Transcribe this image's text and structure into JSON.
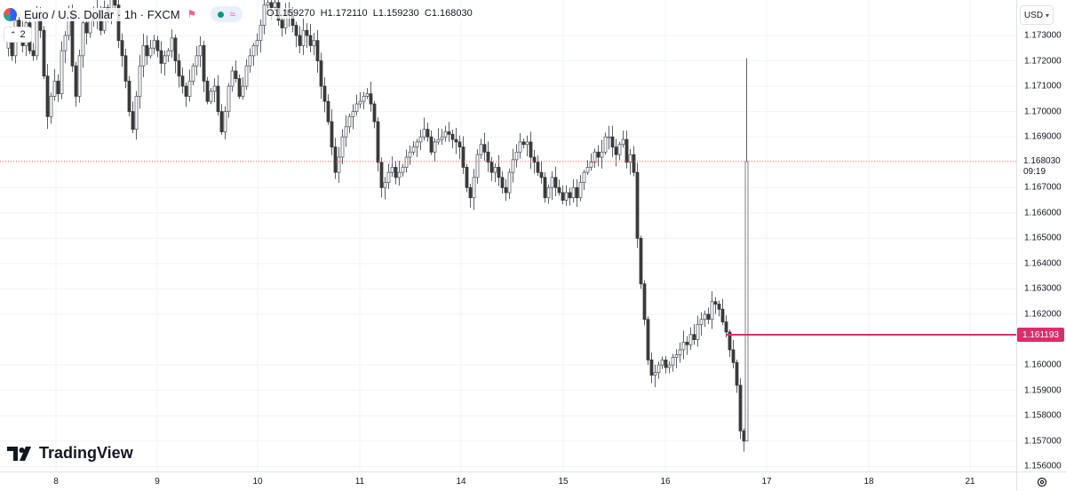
{
  "legend": {
    "title": "Euro / U.S. Dollar · 1h · FXCM",
    "open_label": "O",
    "open": "1.159270",
    "high_label": "H",
    "high": "1.172110",
    "low_label": "L",
    "low": "1.159230",
    "close_label": "C",
    "close": "1.168030",
    "collapse_count": "2"
  },
  "price_axis": {
    "currency": "USD",
    "ticks": [
      "1.173000",
      "1.172000",
      "1.171000",
      "1.170000",
      "1.169000",
      "1.168030",
      "1.167000",
      "1.166000",
      "1.165000",
      "1.164000",
      "1.163000",
      "1.162000",
      "1.161193",
      "1.160000",
      "1.159000",
      "1.158000",
      "1.157000",
      "1.156000"
    ],
    "last_price": "1.168030",
    "countdown": "09:19",
    "current_price": "1.161193"
  },
  "time_axis": {
    "labels": [
      "8",
      "9",
      "10",
      "11",
      "14",
      "15",
      "16",
      "17",
      "18",
      "21"
    ]
  },
  "branding": {
    "logo_text": "TradingView"
  },
  "colors": {
    "up": "#ffffff",
    "down": "#3a3a3a",
    "wick": "#5d606b",
    "accent_line": "#d8306d",
    "last_price_line": "#ef5350"
  },
  "chart_data": {
    "type": "candlestick",
    "symbol": "Euro / U.S. Dollar",
    "interval": "1h",
    "source": "FXCM",
    "ylim": [
      1.1558,
      1.1744
    ],
    "x_labels": [
      "8",
      "9",
      "10",
      "11",
      "14",
      "15",
      "16",
      "17",
      "18",
      "21"
    ],
    "grid": true,
    "last_price": 1.16803,
    "horizontal_line": 1.161193,
    "series": [
      {
        "name": "EURUSD",
        "anchors": [
          [
            0,
            1.1725
          ],
          [
            4,
            1.1728
          ],
          [
            8,
            1.1722
          ],
          [
            12,
            1.1736
          ],
          [
            16,
            1.1733
          ],
          [
            20,
            1.1726
          ],
          [
            24,
            1.1735
          ],
          [
            28,
            1.1724
          ],
          [
            32,
            1.1722
          ],
          [
            36,
            1.1738
          ],
          [
            40,
            1.1732
          ],
          [
            44,
            1.1714
          ],
          [
            48,
            1.1698
          ],
          [
            52,
            1.1706
          ],
          [
            56,
            1.1712
          ],
          [
            60,
            1.1707
          ],
          [
            64,
            1.1724
          ],
          [
            68,
            1.173
          ],
          [
            72,
            1.1739
          ],
          [
            76,
            1.1718
          ],
          [
            80,
            1.1706
          ],
          [
            84,
            1.1722
          ],
          [
            88,
            1.1735
          ],
          [
            92,
            1.1731
          ],
          [
            96,
            1.1738
          ],
          [
            100,
            1.1736
          ],
          [
            104,
            1.174
          ],
          [
            108,
            1.1732
          ],
          [
            112,
            1.1741
          ],
          [
            116,
            1.1738
          ],
          [
            120,
            1.1745
          ],
          [
            124,
            1.1742
          ],
          [
            128,
            1.1728
          ],
          [
            132,
            1.1722
          ],
          [
            136,
            1.1712
          ],
          [
            140,
            1.17
          ],
          [
            144,
            1.1693
          ],
          [
            148,
            1.1706
          ],
          [
            152,
            1.1718
          ],
          [
            156,
            1.1726
          ],
          [
            160,
            1.1722
          ],
          [
            164,
            1.1725
          ],
          [
            168,
            1.1728
          ],
          [
            172,
            1.1724
          ],
          [
            176,
            1.1719
          ],
          [
            180,
            1.1722
          ],
          [
            184,
            1.1724
          ],
          [
            188,
            1.1729
          ],
          [
            192,
            1.172
          ],
          [
            196,
            1.1714
          ],
          [
            200,
            1.171
          ],
          [
            204,
            1.1706
          ],
          [
            208,
            1.1712
          ],
          [
            212,
            1.1718
          ],
          [
            216,
            1.1722
          ],
          [
            220,
            1.1726
          ],
          [
            224,
            1.1712
          ],
          [
            228,
            1.1704
          ],
          [
            232,
            1.1708
          ],
          [
            236,
            1.171
          ],
          [
            240,
            1.17
          ],
          [
            244,
            1.1692
          ],
          [
            248,
            1.17
          ],
          [
            252,
            1.171
          ],
          [
            256,
            1.1716
          ],
          [
            260,
            1.1713
          ],
          [
            264,
            1.1706
          ],
          [
            268,
            1.171
          ],
          [
            272,
            1.1718
          ],
          [
            276,
            1.1722
          ],
          [
            280,
            1.1726
          ],
          [
            284,
            1.1728
          ],
          [
            288,
            1.1734
          ],
          [
            292,
            1.1742
          ],
          [
            296,
            1.1743
          ],
          [
            300,
            1.1741
          ],
          [
            304,
            1.1743
          ],
          [
            308,
            1.1736
          ],
          [
            312,
            1.1733
          ],
          [
            316,
            1.174
          ],
          [
            320,
            1.1738
          ],
          [
            324,
            1.1734
          ],
          [
            328,
            1.173
          ],
          [
            332,
            1.1726
          ],
          [
            336,
            1.1732
          ],
          [
            340,
            1.173
          ],
          [
            344,
            1.1726
          ],
          [
            348,
            1.1728
          ],
          [
            352,
            1.172
          ],
          [
            356,
            1.171
          ],
          [
            360,
            1.1704
          ],
          [
            364,
            1.1696
          ],
          [
            368,
            1.1686
          ],
          [
            372,
            1.1676
          ],
          [
            376,
            1.1682
          ],
          [
            380,
            1.169
          ],
          [
            384,
            1.1694
          ],
          [
            388,
            1.1698
          ],
          [
            392,
            1.17
          ],
          [
            396,
            1.1703
          ],
          [
            400,
            1.1704
          ],
          [
            404,
            1.1706
          ],
          [
            408,
            1.1707
          ],
          [
            412,
            1.1703
          ],
          [
            416,
            1.1696
          ],
          [
            420,
            1.168
          ],
          [
            424,
            1.167
          ],
          [
            428,
            1.1672
          ],
          [
            432,
            1.1676
          ],
          [
            436,
            1.1678
          ],
          [
            440,
            1.1674
          ],
          [
            444,
            1.1676
          ],
          [
            448,
            1.1678
          ],
          [
            452,
            1.1682
          ],
          [
            456,
            1.1684
          ],
          [
            460,
            1.1686
          ],
          [
            464,
            1.1688
          ],
          [
            468,
            1.169
          ],
          [
            472,
            1.1693
          ],
          [
            476,
            1.169
          ],
          [
            480,
            1.1684
          ],
          [
            484,
            1.1688
          ],
          [
            488,
            1.1689
          ],
          [
            492,
            1.169
          ],
          [
            496,
            1.1692
          ],
          [
            500,
            1.1691
          ],
          [
            504,
            1.1689
          ],
          [
            508,
            1.1688
          ],
          [
            512,
            1.1686
          ],
          [
            516,
            1.1678
          ],
          [
            520,
            1.167
          ],
          [
            524,
            1.1666
          ],
          [
            528,
            1.1674
          ],
          [
            532,
            1.1683
          ],
          [
            536,
            1.1687
          ],
          [
            540,
            1.1684
          ],
          [
            544,
            1.168
          ],
          [
            548,
            1.1676
          ],
          [
            552,
            1.1678
          ],
          [
            556,
            1.1674
          ],
          [
            560,
            1.167
          ],
          [
            564,
            1.1668
          ],
          [
            568,
            1.1676
          ],
          [
            572,
            1.1681
          ],
          [
            576,
            1.1684
          ],
          [
            580,
            1.1688
          ],
          [
            584,
            1.1687
          ],
          [
            588,
            1.1688
          ],
          [
            592,
            1.1682
          ],
          [
            596,
            1.168
          ],
          [
            600,
            1.1676
          ],
          [
            604,
            1.1674
          ],
          [
            608,
            1.1666
          ],
          [
            612,
            1.167
          ],
          [
            616,
            1.1674
          ],
          [
            620,
            1.167
          ],
          [
            624,
            1.1668
          ],
          [
            628,
            1.1665
          ],
          [
            632,
            1.1668
          ],
          [
            636,
            1.1666
          ],
          [
            640,
            1.167
          ],
          [
            644,
            1.1666
          ],
          [
            648,
            1.1672
          ],
          [
            652,
            1.1676
          ],
          [
            656,
            1.1678
          ],
          [
            660,
            1.168
          ],
          [
            664,
            1.1684
          ],
          [
            668,
            1.1682
          ],
          [
            672,
            1.1684
          ],
          [
            676,
            1.169
          ],
          [
            680,
            1.169
          ],
          [
            684,
            1.1686
          ],
          [
            688,
            1.1683
          ],
          [
            692,
            1.1687
          ],
          [
            696,
            1.1689
          ],
          [
            700,
            1.168
          ],
          [
            704,
            1.1683
          ],
          [
            708,
            1.1676
          ],
          [
            712,
            1.165
          ],
          [
            716,
            1.1632
          ],
          [
            720,
            1.1618
          ],
          [
            724,
            1.1602
          ],
          [
            728,
            1.1596
          ],
          [
            732,
            1.1597
          ],
          [
            736,
            1.16
          ],
          [
            740,
            1.1602
          ],
          [
            744,
            1.1599
          ],
          [
            748,
            1.16
          ],
          [
            752,
            1.1603
          ],
          [
            756,
            1.1604
          ],
          [
            760,
            1.1606
          ],
          [
            764,
            1.1609
          ],
          [
            768,
            1.1608
          ],
          [
            772,
            1.1612
          ],
          [
            776,
            1.161
          ],
          [
            780,
            1.1616
          ],
          [
            784,
            1.1618
          ],
          [
            788,
            1.162
          ],
          [
            792,
            1.1618
          ],
          [
            796,
            1.1625
          ],
          [
            800,
            1.1624
          ],
          [
            804,
            1.1622
          ],
          [
            808,
            1.1617
          ],
          [
            812,
            1.1613
          ],
          [
            816,
            1.1606
          ],
          [
            820,
            1.1601
          ],
          [
            824,
            1.1592
          ],
          [
            828,
            1.1574
          ],
          [
            832,
            1.157
          ],
          [
            835,
            1.16803
          ]
        ]
      }
    ]
  }
}
